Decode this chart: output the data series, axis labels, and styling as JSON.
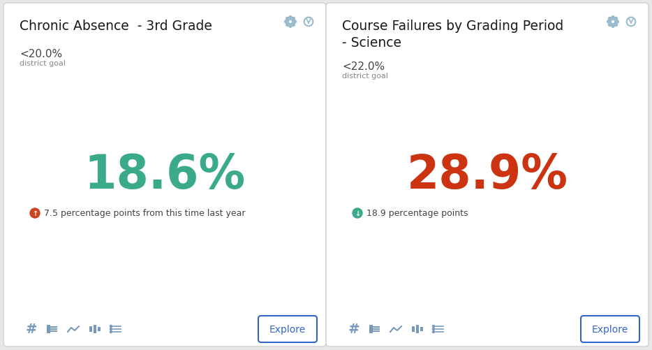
{
  "background_color": "#e8e8e8",
  "card_bg": "#ffffff",
  "card_border": "#d0d0d0",
  "cards": [
    {
      "title": "Chronic Absence  - 3rd Grade",
      "title_lines": 1,
      "goal_label": "<20.0%",
      "goal_sublabel": "district goal",
      "main_value": "18.6%",
      "main_color": "#3aaa8a",
      "change_icon": "up_red",
      "change_icon_color": "#cc4422",
      "change_text": "7.5 percentage points from this time last year",
      "change_text_color": "#444444"
    },
    {
      "title": "Course Failures by Grading Period\n- Science",
      "title_lines": 2,
      "goal_label": "<22.0%",
      "goal_sublabel": "district goal",
      "main_value": "28.9%",
      "main_color": "#cc3311",
      "change_icon": "down_green",
      "change_icon_color": "#3aaa8a",
      "change_text": "18.9 percentage points",
      "change_text_color": "#444444"
    }
  ],
  "explore_text": "Explore",
  "explore_border": "#3366cc",
  "explore_text_color": "#3366cc",
  "toolbar_icon_color": "#7799bb",
  "gear_color": "#99bbcc",
  "title_fontsize": 13.5,
  "goal_fontsize": 11,
  "goal_sub_fontsize": 8,
  "main_fontsize": 48,
  "change_fontsize": 9,
  "toolbar_fontsize": 13,
  "explore_fontsize": 10
}
